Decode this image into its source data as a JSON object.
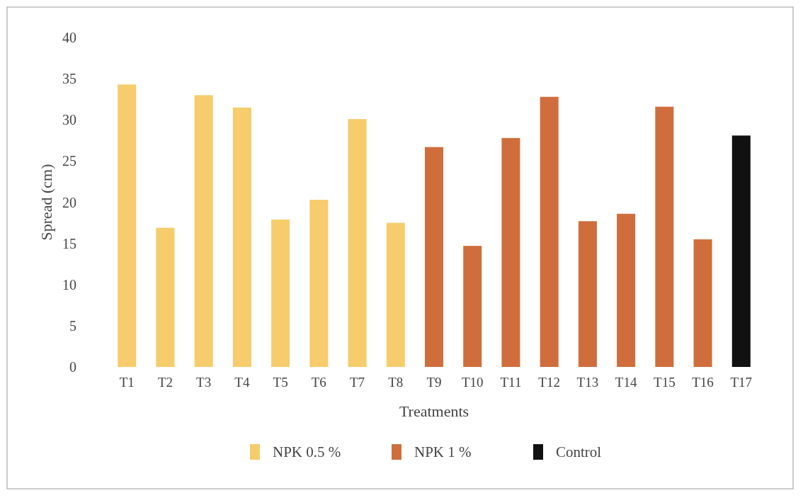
{
  "chart_data": {
    "type": "bar",
    "xlabel": "Treatments",
    "ylabel": "Spread (cm)",
    "categories": [
      "T1",
      "T2",
      "T3",
      "T4",
      "T5",
      "T6",
      "T7",
      "T8",
      "T9",
      "T10",
      "T11",
      "T12",
      "T13",
      "T14",
      "T15",
      "T16",
      "T17"
    ],
    "series": [
      {
        "name": "NPK 0.5 %",
        "color": "#f6cc6c",
        "values": [
          34.3,
          16.9,
          33.0,
          31.5,
          17.9,
          20.3,
          30.1,
          17.5,
          null,
          null,
          null,
          null,
          null,
          null,
          null,
          null,
          null
        ]
      },
      {
        "name": "NPK 1 %",
        "color": "#cf6e3c",
        "values": [
          null,
          null,
          null,
          null,
          null,
          null,
          null,
          null,
          26.7,
          14.7,
          27.8,
          32.8,
          17.7,
          18.6,
          31.6,
          15.5,
          null
        ]
      },
      {
        "name": "Control",
        "color": "#111111",
        "values": [
          null,
          null,
          null,
          null,
          null,
          null,
          null,
          null,
          null,
          null,
          null,
          null,
          null,
          null,
          null,
          null,
          28.1
        ]
      }
    ],
    "ylim": [
      0,
      40
    ],
    "yticks": [
      0,
      5,
      10,
      15,
      20,
      25,
      30,
      35,
      40
    ],
    "grid": false,
    "legend": "bottom"
  }
}
